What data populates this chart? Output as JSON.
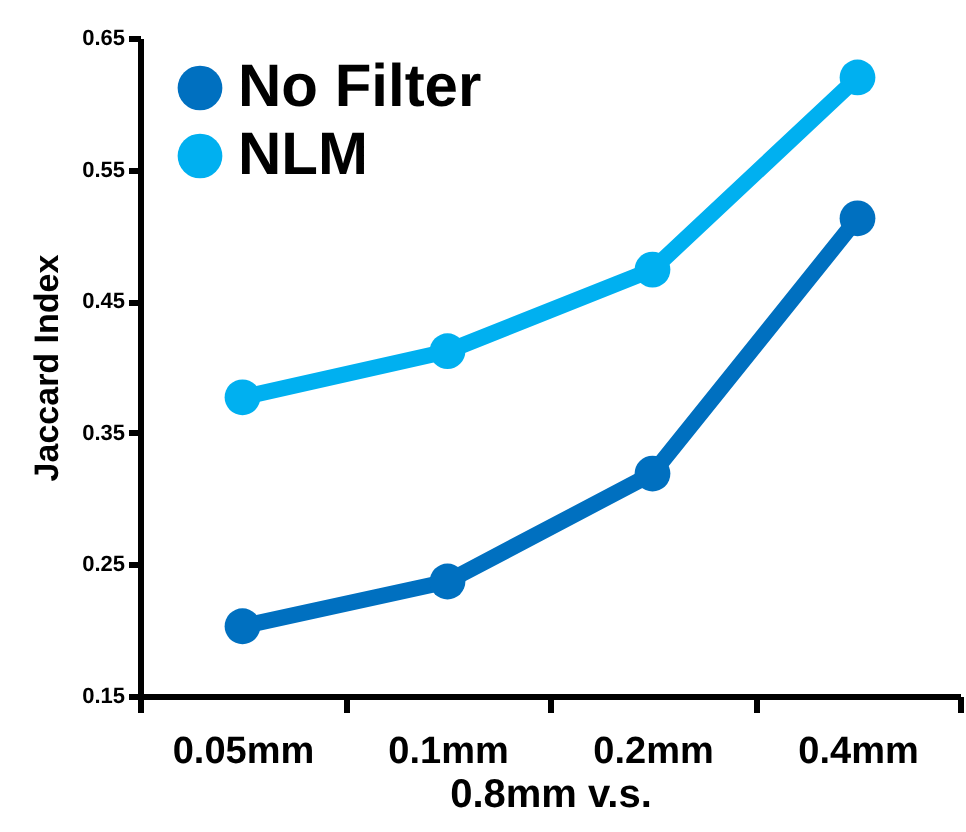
{
  "chart_data": {
    "type": "line",
    "xlabel": "0.8mm v.s.",
    "ylabel": "Jaccard Index",
    "categories": [
      "0.05mm",
      "0.1mm",
      "0.2mm",
      "0.4mm"
    ],
    "series": [
      {
        "name": "No Filter",
        "color": "#0070c0",
        "values": [
          0.203,
          0.237,
          0.319,
          0.513
        ]
      },
      {
        "name": "NLM",
        "color": "#00b0f0",
        "values": [
          0.377,
          0.412,
          0.474,
          0.62
        ]
      }
    ],
    "ylim": [
      0.15,
      0.65
    ],
    "yticks": [
      0.15,
      0.25,
      0.35,
      0.45,
      0.55,
      0.65
    ],
    "grid": false,
    "legend": "top left",
    "marker": "circle",
    "line_style": "solid"
  }
}
